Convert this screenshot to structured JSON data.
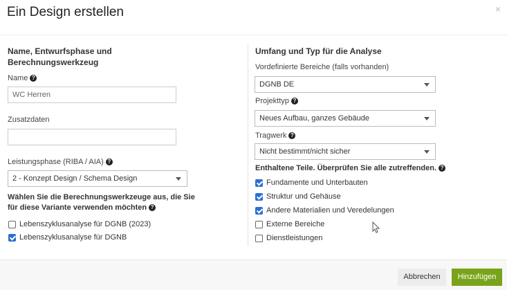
{
  "dialog": {
    "title": "Ein Design erstellen",
    "close_label": "×"
  },
  "left": {
    "heading": "Name, Entwurfsphase und Berechnungswerkzeug",
    "name_label": "Name",
    "name_value": "WC Herren",
    "extra_label": "Zusatzdaten",
    "extra_value": "",
    "phase_label": "Leistungsphase (RIBA / AIA)",
    "phase_value": "2 - Konzept Design / Schema Design",
    "tools_prompt": "Wählen Sie die Berechnungswerkzeuge aus, die Sie für diese Variante verwenden möchten",
    "tools": [
      {
        "label": "Lebenszyklusanalyse für DGNB (2023)",
        "checked": false
      },
      {
        "label": "Lebenszyklusanalyse für DGNB",
        "checked": true
      }
    ]
  },
  "right": {
    "heading": "Umfang und Typ für die Analyse",
    "regions_label": "Vordefinierte Bereiche (falls vorhanden)",
    "regions_value": "DGNB DE",
    "project_label": "Projekttyp",
    "project_value": "Neues Aufbau, ganzes Gebäude",
    "structure_label": "Tragwerk",
    "structure_value": "Nicht bestimmt/nicht sicher",
    "parts_prompt": "Enthaltene Teile. Überprüfen Sie alle zutreffenden.",
    "parts": [
      {
        "label": "Fundamente und Unterbauten",
        "checked": true
      },
      {
        "label": "Struktur und Gehäuse",
        "checked": true
      },
      {
        "label": "Andere Materialien und Veredelungen",
        "checked": true
      },
      {
        "label": "Externe Bereiche",
        "checked": false
      },
      {
        "label": "Dienstleistungen",
        "checked": false
      }
    ]
  },
  "footer": {
    "cancel_label": "Abbrechen",
    "submit_label": "Hinzufügen"
  },
  "colors": {
    "accent": "#79a31a",
    "checkbox": "#2a6fd6"
  }
}
